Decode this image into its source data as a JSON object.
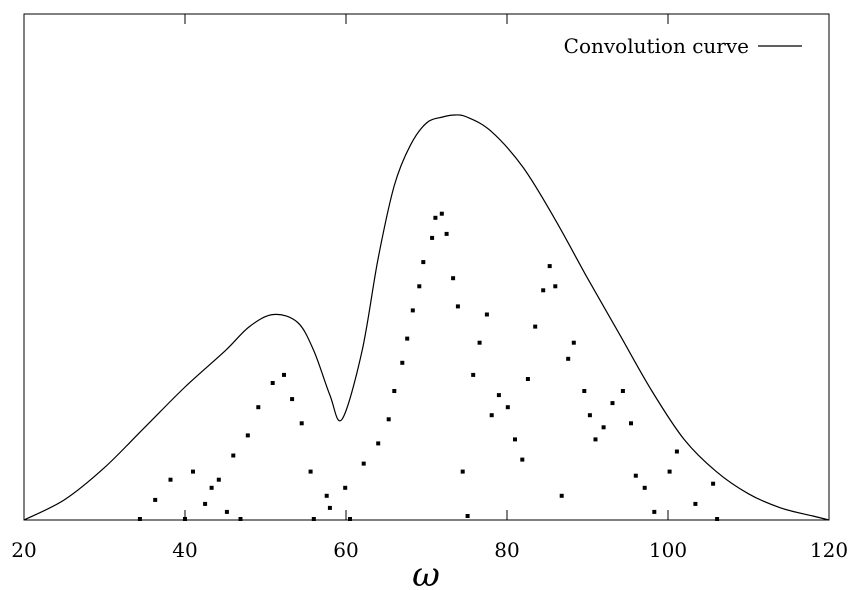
{
  "chart_data": {
    "type": "scatter",
    "title": "",
    "xlabel": "ω",
    "ylabel": "",
    "xlim": [
      20,
      120
    ],
    "ylim": [
      0,
      1.0
    ],
    "x_ticks": [
      20,
      40,
      60,
      80,
      100,
      120
    ],
    "grid": false,
    "legend_position": "top-right",
    "series": [
      {
        "name": "Convolution curve",
        "kind": "line",
        "color": "#000000",
        "x": [
          20,
          25,
          30,
          35,
          40,
          45,
          48,
          51,
          54,
          56,
          58,
          59.5,
          62,
          64,
          66,
          68,
          70,
          72,
          73.5,
          75,
          78,
          82,
          86,
          90,
          94,
          98,
          102,
          106,
          110,
          114,
          118,
          120
        ],
        "y": [
          0.0,
          0.05,
          0.13,
          0.23,
          0.33,
          0.42,
          0.48,
          0.51,
          0.49,
          0.42,
          0.31,
          0.25,
          0.42,
          0.65,
          0.83,
          0.93,
          0.985,
          1.0,
          1.005,
          1.0,
          0.965,
          0.875,
          0.745,
          0.6,
          0.46,
          0.32,
          0.2,
          0.12,
          0.065,
          0.03,
          0.01,
          0.0
        ]
      },
      {
        "name": "",
        "kind": "points",
        "color": "#000000",
        "x": [
          34.4,
          36.3,
          38.2,
          40.0,
          41.0,
          42.5,
          43.3,
          44.2,
          45.2,
          46.0,
          46.9,
          47.8,
          49.1,
          50.9,
          52.3,
          53.3,
          54.5,
          55.6,
          56.0,
          57.6,
          58.0,
          59.9,
          60.5,
          62.2,
          64.0,
          65.3,
          66.0,
          67.0,
          67.6,
          68.3,
          69.1,
          69.6,
          70.7,
          71.1,
          71.9,
          72.5,
          73.3,
          73.9,
          74.5,
          75.1,
          75.8,
          76.6,
          77.5,
          78.1,
          79.0,
          80.1,
          81.0,
          81.9,
          82.6,
          83.5,
          84.5,
          85.3,
          86.0,
          86.8,
          87.6,
          88.3,
          89.6,
          90.3,
          91.0,
          92.0,
          93.1,
          94.4,
          95.4,
          96.0,
          97.1,
          98.3,
          100.2,
          101.1,
          103.4,
          105.6,
          106.1
        ],
        "y": [
          0.0,
          0.05,
          0.1,
          0.0,
          0.12,
          0.04,
          0.08,
          0.1,
          0.02,
          0.16,
          0.0,
          0.21,
          0.28,
          0.34,
          0.36,
          0.3,
          0.24,
          0.12,
          0.0,
          0.06,
          0.03,
          0.08,
          0.0,
          0.14,
          0.19,
          0.25,
          0.32,
          0.39,
          0.45,
          0.52,
          0.58,
          0.64,
          0.7,
          0.75,
          0.76,
          0.71,
          0.6,
          0.53,
          0.12,
          0.01,
          0.36,
          0.44,
          0.51,
          0.26,
          0.31,
          0.28,
          0.2,
          0.15,
          0.35,
          0.48,
          0.57,
          0.63,
          0.58,
          0.06,
          0.4,
          0.44,
          0.32,
          0.26,
          0.2,
          0.23,
          0.29,
          0.32,
          0.24,
          0.11,
          0.08,
          0.02,
          0.12,
          0.17,
          0.04,
          0.09,
          0.0
        ]
      }
    ]
  }
}
